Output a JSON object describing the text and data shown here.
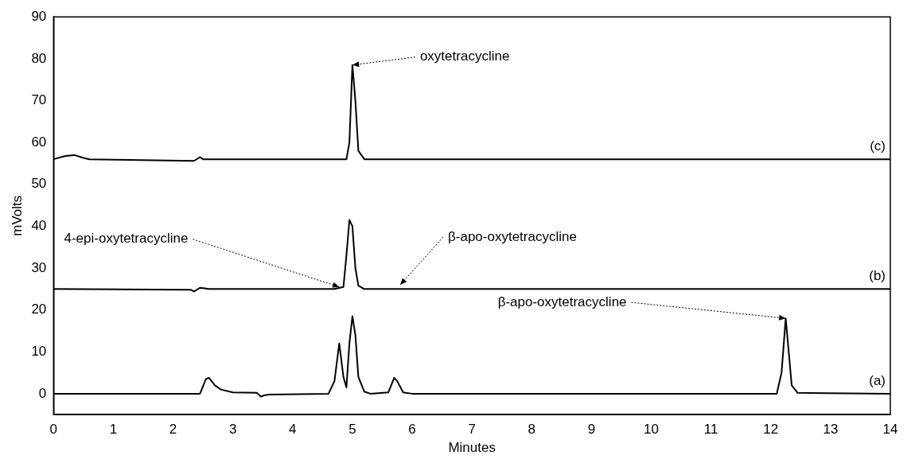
{
  "chart_data": {
    "type": "line",
    "xlabel": "Minutes",
    "ylabel": "mVolts",
    "xlim": [
      0,
      14
    ],
    "xticks": [
      0,
      1,
      2,
      3,
      4,
      5,
      6,
      7,
      8,
      9,
      10,
      11,
      12,
      13,
      14
    ],
    "ylim": [
      -5,
      90
    ],
    "yticks": [
      0,
      10,
      20,
      30,
      40,
      50,
      60,
      70,
      80,
      90
    ],
    "grid": false,
    "legend": false,
    "marker": "none",
    "line_style": "solid",
    "series": [
      {
        "name": "(a)",
        "color": "#000000",
        "x": [
          0,
          2.45,
          2.55,
          2.6,
          2.7,
          2.8,
          3.0,
          3.4,
          3.47,
          3.52,
          3.6,
          4.6,
          4.7,
          4.78,
          4.85,
          4.9,
          4.95,
          5.0,
          5.05,
          5.1,
          5.2,
          5.3,
          5.6,
          5.7,
          5.75,
          5.85,
          6.0,
          12.1,
          12.18,
          12.25,
          12.3,
          12.35,
          12.45,
          14
        ],
        "values": [
          0,
          0,
          3.5,
          3.8,
          2,
          1,
          0.3,
          0.2,
          -0.7,
          -0.4,
          -0.2,
          0,
          3,
          12,
          4,
          1.5,
          12,
          18.5,
          14,
          4,
          0.5,
          0,
          0.3,
          3.8,
          3,
          0.3,
          0,
          0,
          5,
          18,
          10,
          2,
          0.2,
          0
        ]
      },
      {
        "name": "(b)",
        "color": "#000000",
        "x": [
          0,
          2.3,
          2.35,
          2.45,
          2.6,
          4.7,
          4.85,
          4.9,
          4.95,
          5.0,
          5.05,
          5.1,
          5.2,
          14
        ],
        "values": [
          25,
          24.8,
          24.4,
          25.3,
          25,
          25,
          25.5,
          33,
          41.5,
          40,
          30,
          25.8,
          25,
          25
        ]
      },
      {
        "name": "(c)",
        "color": "#000000",
        "x": [
          0,
          0.2,
          0.35,
          0.5,
          0.6,
          2.35,
          2.45,
          2.5,
          4.9,
          4.95,
          5.0,
          5.05,
          5.1,
          5.2,
          14
        ],
        "values": [
          56,
          56.8,
          57,
          56.3,
          56,
          55.6,
          56.5,
          56,
          56,
          60,
          78.5,
          70,
          58,
          56,
          56
        ]
      }
    ],
    "annotations": [
      {
        "text": "oxytetracycline",
        "x": 5.0,
        "y": 78.5
      },
      {
        "text": "4-epi-oxytetracycline",
        "x": 4.78,
        "y": 25.5
      },
      {
        "text": "β-apo-oxytetracycline",
        "x": 5.8,
        "y": 26
      },
      {
        "text": "β-apo-oxytetracycline",
        "x": 12.25,
        "y": 18
      }
    ]
  }
}
